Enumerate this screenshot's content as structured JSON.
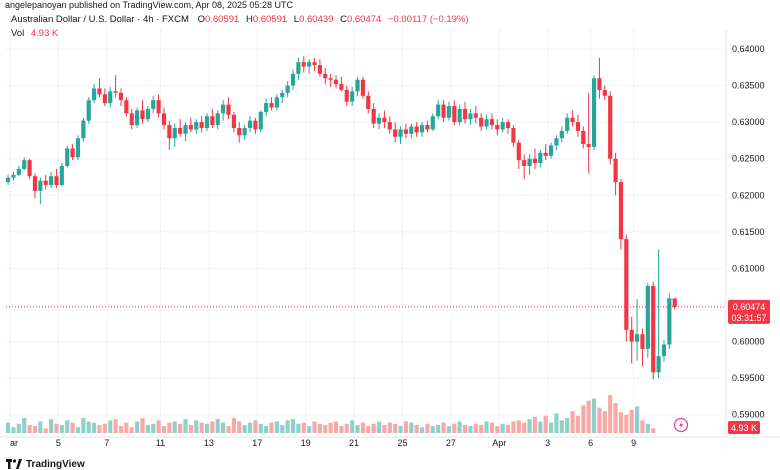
{
  "header": {
    "publisher_line": "angelepanoyan published on TradingView.com, Apr 08, 2025 05:28 UTC"
  },
  "legend": {
    "symbol": "Australian Dollar / U.S. Dollar · 4h · FXCM",
    "o_label": "O",
    "o_value": "0.60591",
    "h_label": "H",
    "h_value": "0.60591",
    "l_label": "L",
    "l_value": "0.60439",
    "c_label": "C",
    "c_value": "0.60474",
    "change": "−0.00117 (−0.19%)",
    "vol_label": "Vol",
    "vol_value": "4.93 K"
  },
  "price_scale": {
    "ticks": [
      "0.64000",
      "0.63500",
      "0.63000",
      "0.62500",
      "0.62000",
      "0.61500",
      "0.61000",
      "0.60500",
      "0.60000",
      "0.59500",
      "0.59000"
    ],
    "last_price": "0.60474",
    "countdown": "03:31:57",
    "volume_tag": "4.93 K"
  },
  "time_axis": {
    "labels": [
      "ar",
      "5",
      "7",
      "11",
      "13",
      "17",
      "19",
      "21",
      "25",
      "27",
      "Apr",
      "3",
      "6",
      "9"
    ]
  },
  "footer": {
    "brand": "TradingView"
  },
  "colors": {
    "up": "#26a69a",
    "down": "#f23645",
    "vol_up": "#8fd1c9",
    "vol_down": "#f7a9a7"
  },
  "chart_data": {
    "type": "candlestick",
    "interval": "4h",
    "ylim": [
      0.5875,
      0.6415
    ],
    "candles": [
      {
        "o": 0.6218,
        "h": 0.6228,
        "l": 0.6214,
        "c": 0.6224
      },
      {
        "o": 0.6224,
        "h": 0.6232,
        "l": 0.622,
        "c": 0.6228
      },
      {
        "o": 0.6228,
        "h": 0.624,
        "l": 0.6226,
        "c": 0.6236
      },
      {
        "o": 0.6236,
        "h": 0.6252,
        "l": 0.6234,
        "c": 0.6248
      },
      {
        "o": 0.6248,
        "h": 0.625,
        "l": 0.6222,
        "c": 0.6226
      },
      {
        "o": 0.6226,
        "h": 0.623,
        "l": 0.6196,
        "c": 0.6206
      },
      {
        "o": 0.6206,
        "h": 0.6224,
        "l": 0.6188,
        "c": 0.622
      },
      {
        "o": 0.622,
        "h": 0.6228,
        "l": 0.6208,
        "c": 0.6214
      },
      {
        "o": 0.6214,
        "h": 0.6232,
        "l": 0.621,
        "c": 0.6226
      },
      {
        "o": 0.6226,
        "h": 0.6236,
        "l": 0.621,
        "c": 0.6214
      },
      {
        "o": 0.6214,
        "h": 0.6244,
        "l": 0.6212,
        "c": 0.624
      },
      {
        "o": 0.624,
        "h": 0.6268,
        "l": 0.6238,
        "c": 0.6264
      },
      {
        "o": 0.6264,
        "h": 0.627,
        "l": 0.6248,
        "c": 0.6252
      },
      {
        "o": 0.6252,
        "h": 0.6282,
        "l": 0.6248,
        "c": 0.6278
      },
      {
        "o": 0.6278,
        "h": 0.6306,
        "l": 0.6274,
        "c": 0.6302
      },
      {
        "o": 0.6302,
        "h": 0.6334,
        "l": 0.6298,
        "c": 0.633
      },
      {
        "o": 0.633,
        "h": 0.6352,
        "l": 0.6326,
        "c": 0.6346
      },
      {
        "o": 0.6346,
        "h": 0.636,
        "l": 0.6334,
        "c": 0.6338
      },
      {
        "o": 0.6338,
        "h": 0.6346,
        "l": 0.6322,
        "c": 0.6326
      },
      {
        "o": 0.6326,
        "h": 0.6348,
        "l": 0.632,
        "c": 0.6342
      },
      {
        "o": 0.6342,
        "h": 0.6364,
        "l": 0.6334,
        "c": 0.634
      },
      {
        "o": 0.634,
        "h": 0.6346,
        "l": 0.6322,
        "c": 0.633
      },
      {
        "o": 0.633,
        "h": 0.6334,
        "l": 0.6308,
        "c": 0.6312
      },
      {
        "o": 0.6312,
        "h": 0.6318,
        "l": 0.629,
        "c": 0.6296
      },
      {
        "o": 0.6296,
        "h": 0.632,
        "l": 0.6292,
        "c": 0.6316
      },
      {
        "o": 0.6316,
        "h": 0.633,
        "l": 0.6298,
        "c": 0.6304
      },
      {
        "o": 0.6304,
        "h": 0.6322,
        "l": 0.63,
        "c": 0.6318
      },
      {
        "o": 0.6318,
        "h": 0.6336,
        "l": 0.6312,
        "c": 0.633
      },
      {
        "o": 0.633,
        "h": 0.6338,
        "l": 0.6306,
        "c": 0.6312
      },
      {
        "o": 0.6312,
        "h": 0.632,
        "l": 0.629,
        "c": 0.6296
      },
      {
        "o": 0.6296,
        "h": 0.6302,
        "l": 0.6262,
        "c": 0.6278
      },
      {
        "o": 0.6278,
        "h": 0.6298,
        "l": 0.6266,
        "c": 0.6292
      },
      {
        "o": 0.6292,
        "h": 0.6304,
        "l": 0.628,
        "c": 0.6284
      },
      {
        "o": 0.6284,
        "h": 0.63,
        "l": 0.6274,
        "c": 0.6296
      },
      {
        "o": 0.6296,
        "h": 0.6306,
        "l": 0.6286,
        "c": 0.629
      },
      {
        "o": 0.629,
        "h": 0.6304,
        "l": 0.6284,
        "c": 0.63
      },
      {
        "o": 0.63,
        "h": 0.6308,
        "l": 0.6286,
        "c": 0.6292
      },
      {
        "o": 0.6292,
        "h": 0.6312,
        "l": 0.6288,
        "c": 0.6308
      },
      {
        "o": 0.6308,
        "h": 0.6318,
        "l": 0.6292,
        "c": 0.6296
      },
      {
        "o": 0.6296,
        "h": 0.6316,
        "l": 0.629,
        "c": 0.6312
      },
      {
        "o": 0.6312,
        "h": 0.633,
        "l": 0.6302,
        "c": 0.6324
      },
      {
        "o": 0.6324,
        "h": 0.6334,
        "l": 0.6304,
        "c": 0.631
      },
      {
        "o": 0.631,
        "h": 0.6314,
        "l": 0.6286,
        "c": 0.6292
      },
      {
        "o": 0.6292,
        "h": 0.63,
        "l": 0.6272,
        "c": 0.6282
      },
      {
        "o": 0.6282,
        "h": 0.6296,
        "l": 0.6276,
        "c": 0.6292
      },
      {
        "o": 0.6292,
        "h": 0.6308,
        "l": 0.6286,
        "c": 0.6302
      },
      {
        "o": 0.6302,
        "h": 0.6306,
        "l": 0.6284,
        "c": 0.629
      },
      {
        "o": 0.629,
        "h": 0.6316,
        "l": 0.6286,
        "c": 0.6314
      },
      {
        "o": 0.6314,
        "h": 0.6332,
        "l": 0.6308,
        "c": 0.6326
      },
      {
        "o": 0.6326,
        "h": 0.6334,
        "l": 0.6316,
        "c": 0.632
      },
      {
        "o": 0.632,
        "h": 0.6338,
        "l": 0.6316,
        "c": 0.6334
      },
      {
        "o": 0.6334,
        "h": 0.6344,
        "l": 0.6326,
        "c": 0.634
      },
      {
        "o": 0.634,
        "h": 0.6356,
        "l": 0.6334,
        "c": 0.635
      },
      {
        "o": 0.635,
        "h": 0.6372,
        "l": 0.6344,
        "c": 0.6366
      },
      {
        "o": 0.6366,
        "h": 0.6388,
        "l": 0.6358,
        "c": 0.6382
      },
      {
        "o": 0.6382,
        "h": 0.639,
        "l": 0.6368,
        "c": 0.6376
      },
      {
        "o": 0.6376,
        "h": 0.6386,
        "l": 0.6366,
        "c": 0.6382
      },
      {
        "o": 0.6382,
        "h": 0.6388,
        "l": 0.637,
        "c": 0.6378
      },
      {
        "o": 0.6378,
        "h": 0.6386,
        "l": 0.6362,
        "c": 0.6366
      },
      {
        "o": 0.6366,
        "h": 0.6374,
        "l": 0.6352,
        "c": 0.636
      },
      {
        "o": 0.636,
        "h": 0.6366,
        "l": 0.6348,
        "c": 0.6358
      },
      {
        "o": 0.6358,
        "h": 0.6364,
        "l": 0.6346,
        "c": 0.6352
      },
      {
        "o": 0.6352,
        "h": 0.6362,
        "l": 0.6342,
        "c": 0.6344
      },
      {
        "o": 0.6344,
        "h": 0.635,
        "l": 0.6322,
        "c": 0.6328
      },
      {
        "o": 0.6328,
        "h": 0.6348,
        "l": 0.6322,
        "c": 0.6342
      },
      {
        "o": 0.6342,
        "h": 0.6362,
        "l": 0.6336,
        "c": 0.6358
      },
      {
        "o": 0.6358,
        "h": 0.6362,
        "l": 0.6332,
        "c": 0.6336
      },
      {
        "o": 0.6336,
        "h": 0.6342,
        "l": 0.6312,
        "c": 0.6318
      },
      {
        "o": 0.6318,
        "h": 0.6326,
        "l": 0.6292,
        "c": 0.6298
      },
      {
        "o": 0.6298,
        "h": 0.6312,
        "l": 0.629,
        "c": 0.6306
      },
      {
        "o": 0.6306,
        "h": 0.6316,
        "l": 0.6292,
        "c": 0.63
      },
      {
        "o": 0.63,
        "h": 0.6308,
        "l": 0.6284,
        "c": 0.629
      },
      {
        "o": 0.629,
        "h": 0.63,
        "l": 0.6272,
        "c": 0.628
      },
      {
        "o": 0.628,
        "h": 0.6294,
        "l": 0.627,
        "c": 0.629
      },
      {
        "o": 0.629,
        "h": 0.6298,
        "l": 0.6278,
        "c": 0.6284
      },
      {
        "o": 0.6284,
        "h": 0.6298,
        "l": 0.6278,
        "c": 0.6294
      },
      {
        "o": 0.6294,
        "h": 0.63,
        "l": 0.628,
        "c": 0.6286
      },
      {
        "o": 0.6286,
        "h": 0.63,
        "l": 0.628,
        "c": 0.6296
      },
      {
        "o": 0.6296,
        "h": 0.6302,
        "l": 0.6286,
        "c": 0.629
      },
      {
        "o": 0.629,
        "h": 0.6312,
        "l": 0.6288,
        "c": 0.6308
      },
      {
        "o": 0.6308,
        "h": 0.633,
        "l": 0.6304,
        "c": 0.6324
      },
      {
        "o": 0.6324,
        "h": 0.633,
        "l": 0.63,
        "c": 0.6306
      },
      {
        "o": 0.6306,
        "h": 0.6328,
        "l": 0.6302,
        "c": 0.6322
      },
      {
        "o": 0.6322,
        "h": 0.633,
        "l": 0.6296,
        "c": 0.63
      },
      {
        "o": 0.63,
        "h": 0.6324,
        "l": 0.6296,
        "c": 0.6318
      },
      {
        "o": 0.6318,
        "h": 0.6328,
        "l": 0.6298,
        "c": 0.6304
      },
      {
        "o": 0.6304,
        "h": 0.6318,
        "l": 0.6296,
        "c": 0.6312
      },
      {
        "o": 0.6312,
        "h": 0.6322,
        "l": 0.6298,
        "c": 0.6306
      },
      {
        "o": 0.6306,
        "h": 0.6312,
        "l": 0.6288,
        "c": 0.6294
      },
      {
        "o": 0.6294,
        "h": 0.631,
        "l": 0.629,
        "c": 0.6304
      },
      {
        "o": 0.6304,
        "h": 0.6312,
        "l": 0.629,
        "c": 0.6296
      },
      {
        "o": 0.6296,
        "h": 0.6304,
        "l": 0.6282,
        "c": 0.629
      },
      {
        "o": 0.629,
        "h": 0.6306,
        "l": 0.6286,
        "c": 0.63
      },
      {
        "o": 0.63,
        "h": 0.6304,
        "l": 0.6284,
        "c": 0.6292
      },
      {
        "o": 0.6292,
        "h": 0.6296,
        "l": 0.6266,
        "c": 0.6272
      },
      {
        "o": 0.6272,
        "h": 0.6276,
        "l": 0.6236,
        "c": 0.6248
      },
      {
        "o": 0.6248,
        "h": 0.6256,
        "l": 0.6222,
        "c": 0.624
      },
      {
        "o": 0.624,
        "h": 0.6256,
        "l": 0.6228,
        "c": 0.625
      },
      {
        "o": 0.625,
        "h": 0.6264,
        "l": 0.6236,
        "c": 0.6244
      },
      {
        "o": 0.6244,
        "h": 0.6262,
        "l": 0.6238,
        "c": 0.6258
      },
      {
        "o": 0.6258,
        "h": 0.627,
        "l": 0.6248,
        "c": 0.6254
      },
      {
        "o": 0.6254,
        "h": 0.6272,
        "l": 0.625,
        "c": 0.6268
      },
      {
        "o": 0.6268,
        "h": 0.6282,
        "l": 0.6262,
        "c": 0.6278
      },
      {
        "o": 0.6278,
        "h": 0.6294,
        "l": 0.6272,
        "c": 0.6288
      },
      {
        "o": 0.6288,
        "h": 0.6312,
        "l": 0.6284,
        "c": 0.6306
      },
      {
        "o": 0.6306,
        "h": 0.6316,
        "l": 0.6294,
        "c": 0.63
      },
      {
        "o": 0.63,
        "h": 0.631,
        "l": 0.628,
        "c": 0.6288
      },
      {
        "o": 0.6288,
        "h": 0.6294,
        "l": 0.6264,
        "c": 0.627
      },
      {
        "o": 0.627,
        "h": 0.634,
        "l": 0.623,
        "c": 0.6266
      },
      {
        "o": 0.6266,
        "h": 0.6364,
        "l": 0.6262,
        "c": 0.636
      },
      {
        "o": 0.636,
        "h": 0.6388,
        "l": 0.6332,
        "c": 0.6344
      },
      {
        "o": 0.6344,
        "h": 0.635,
        "l": 0.633,
        "c": 0.6336
      },
      {
        "o": 0.6336,
        "h": 0.6342,
        "l": 0.6242,
        "c": 0.625
      },
      {
        "o": 0.625,
        "h": 0.6258,
        "l": 0.62,
        "c": 0.6218
      },
      {
        "o": 0.6218,
        "h": 0.6222,
        "l": 0.6126,
        "c": 0.614
      },
      {
        "o": 0.614,
        "h": 0.6146,
        "l": 0.6,
        "c": 0.6016
      },
      {
        "o": 0.6016,
        "h": 0.6034,
        "l": 0.597,
        "c": 0.6
      },
      {
        "o": 0.6,
        "h": 0.6058,
        "l": 0.5974,
        "c": 0.601
      },
      {
        "o": 0.601,
        "h": 0.6018,
        "l": 0.5966,
        "c": 0.599
      },
      {
        "o": 0.599,
        "h": 0.608,
        "l": 0.5978,
        "c": 0.6076
      },
      {
        "o": 0.6076,
        "h": 0.6082,
        "l": 0.5948,
        "c": 0.5958
      },
      {
        "o": 0.5958,
        "h": 0.6126,
        "l": 0.595,
        "c": 0.598
      },
      {
        "o": 0.598,
        "h": 0.6002,
        "l": 0.5972,
        "c": 0.5996
      },
      {
        "o": 0.5996,
        "h": 0.6066,
        "l": 0.599,
        "c": 0.6059
      },
      {
        "o": 0.6059,
        "h": 0.6059,
        "l": 0.6044,
        "c": 0.60474
      }
    ],
    "volume": [
      18,
      10,
      16,
      26,
      14,
      12,
      20,
      8,
      24,
      16,
      14,
      22,
      18,
      10,
      26,
      20,
      18,
      14,
      16,
      22,
      24,
      12,
      18,
      10,
      20,
      26,
      14,
      16,
      22,
      12,
      18,
      20,
      16,
      24,
      14,
      22,
      18,
      16,
      20,
      24,
      18,
      12,
      26,
      20,
      14,
      18,
      22,
      16,
      12,
      18,
      20,
      14,
      22,
      24,
      16,
      18,
      12,
      20,
      16,
      14,
      18,
      20,
      12,
      16,
      22,
      14,
      18,
      12,
      16,
      20,
      14,
      18,
      16,
      12,
      20,
      18,
      14,
      10,
      16,
      12,
      14,
      18,
      12,
      16,
      20,
      14,
      12,
      16,
      14,
      20,
      18,
      12,
      16,
      14,
      20,
      22,
      18,
      24,
      28,
      20,
      30,
      18,
      34,
      22,
      26,
      38,
      30,
      48,
      56,
      60,
      44,
      38,
      66,
      52,
      36,
      32,
      40,
      46,
      22,
      16,
      8
    ]
  }
}
